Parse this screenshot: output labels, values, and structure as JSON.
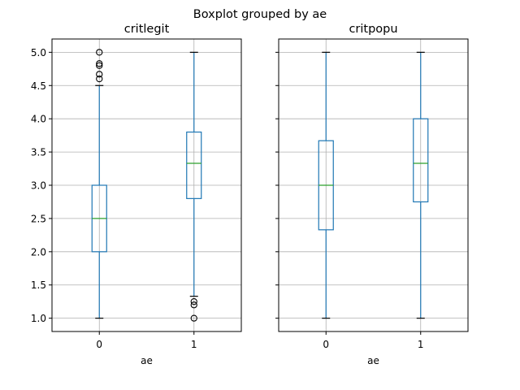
{
  "figure": {
    "suptitle": "Boxplot grouped by ae"
  },
  "chart_data": {
    "type": "boxplot",
    "suptitle": "Boxplot grouped by ae",
    "sharey": true,
    "ylim": [
      0.8,
      5.2
    ],
    "yticks": [
      1.0,
      1.5,
      2.0,
      2.5,
      3.0,
      3.5,
      4.0,
      4.5,
      5.0
    ],
    "ytick_labels": [
      "1.0",
      "1.5",
      "2.0",
      "2.5",
      "3.0",
      "3.5",
      "4.0",
      "4.5",
      "5.0"
    ],
    "grid": true,
    "colors": {
      "box": "#1f77b4",
      "median": "#2ca02c",
      "grid": "#b0b0b0",
      "flier": "#000000"
    },
    "panels": [
      {
        "title": "critlegit",
        "xlabel": "ae",
        "categories": [
          "0",
          "1"
        ],
        "boxes": [
          {
            "category": "0",
            "whislo": 1.0,
            "q1": 2.0,
            "med": 2.5,
            "q3": 3.0,
            "whishi": 4.5,
            "fliers": [
              4.6,
              4.67,
              4.8,
              4.83,
              5.0
            ]
          },
          {
            "category": "1",
            "whislo": 1.33,
            "q1": 2.8,
            "med": 3.33,
            "q3": 3.8,
            "whishi": 5.0,
            "fliers": [
              1.0,
              1.2,
              1.25
            ]
          }
        ]
      },
      {
        "title": "critpopu",
        "xlabel": "ae",
        "categories": [
          "0",
          "1"
        ],
        "boxes": [
          {
            "category": "0",
            "whislo": 1.0,
            "q1": 2.33,
            "med": 3.0,
            "q3": 3.67,
            "whishi": 5.0,
            "fliers": []
          },
          {
            "category": "1",
            "whislo": 1.0,
            "q1": 2.75,
            "med": 3.33,
            "q3": 4.0,
            "whishi": 5.0,
            "fliers": []
          }
        ]
      }
    ]
  }
}
